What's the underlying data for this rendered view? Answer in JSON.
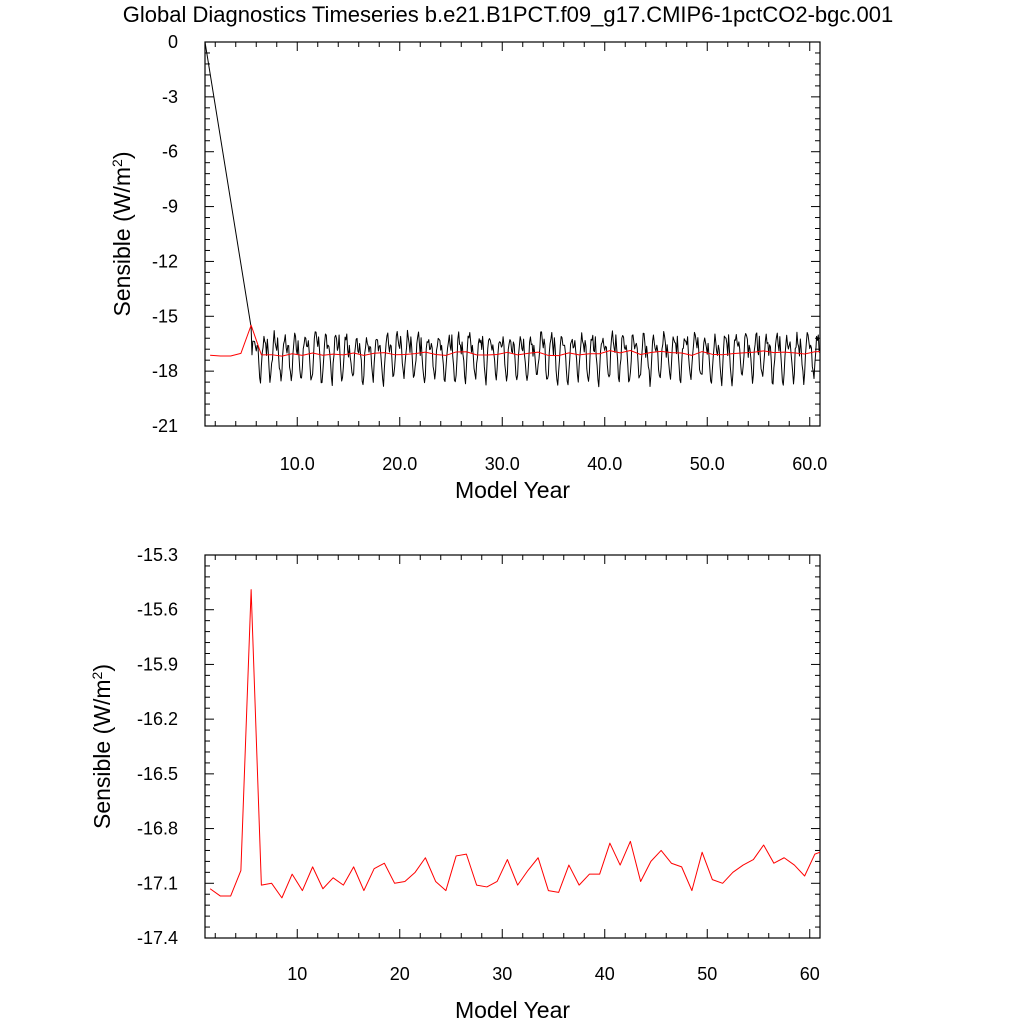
{
  "title": "Global Diagnostics Timeseries b.e21.B1PCT.f09_g17.CMIP6-1pctCO2-bgc.001",
  "colors": {
    "monthly": "#000000",
    "annual": "#ff0000",
    "axes": "#000000",
    "background": "#ffffff"
  },
  "chart_data": [
    {
      "type": "line",
      "xlabel": "Model Year",
      "ylabel": {
        "text": "Sensible (W/m",
        "sup": "2",
        "close": ")"
      },
      "xlim": [
        1,
        61
      ],
      "ylim": [
        -21,
        0
      ],
      "x_ticks": [
        10,
        20,
        30,
        40,
        50,
        60
      ],
      "x_tick_labels": [
        "10.0",
        "20.0",
        "30.0",
        "40.0",
        "50.0",
        "60.0"
      ],
      "y_ticks": [
        0,
        -3,
        -6,
        -9,
        -12,
        -15,
        -18,
        -21
      ],
      "y_tick_labels": [
        "0",
        "-3",
        "-6",
        "-9",
        "-12",
        "-15",
        "-18",
        "-21"
      ],
      "series": [
        {
          "color": "#000000",
          "description": "monthly values, seasonal cycle between about -18.6 and -16.0 after an initial spin-up from 0 to about -15.6 near year 5",
          "monthly_pattern": [
            -16.3,
            -16.9,
            -17.6,
            -18.3,
            -18.5,
            -17.9,
            -17.1,
            -16.4,
            -16.1,
            -16.2,
            -16.6,
            -16.9
          ],
          "spinup_x": [
            1,
            5.5
          ],
          "spinup_y": [
            0,
            -15.6
          ],
          "x_start": 1,
          "x_end": 61
        },
        {
          "color": "#ff0000",
          "description": "annual mean (same values as lower panel)",
          "x": [
            1.5,
            2.5,
            3.5,
            4.5,
            5.5,
            6.5,
            7.5,
            8.5,
            9.5,
            10.5,
            11.5,
            12.5,
            13.5,
            14.5,
            15.5,
            16.5,
            17.5,
            18.5,
            19.5,
            20.5,
            21.5,
            22.5,
            23.5,
            24.5,
            25.5,
            26.5,
            27.5,
            28.5,
            29.5,
            30.5,
            31.5,
            32.5,
            33.5,
            34.5,
            35.5,
            36.5,
            37.5,
            38.5,
            39.5,
            40.5,
            41.5,
            42.5,
            43.5,
            44.5,
            45.5,
            46.5,
            47.5,
            48.5,
            49.5,
            50.5,
            51.5,
            52.5,
            53.5,
            54.5,
            55.5,
            56.5,
            57.5,
            58.5,
            59.5,
            60.5,
            61
          ],
          "y": [
            -17.13,
            -17.17,
            -17.17,
            -17.03,
            -15.49,
            -17.11,
            -17.1,
            -17.18,
            -17.05,
            -17.14,
            -17.01,
            -17.13,
            -17.07,
            -17.11,
            -17.01,
            -17.14,
            -17.02,
            -16.99,
            -17.1,
            -17.09,
            -17.04,
            -16.96,
            -17.09,
            -17.14,
            -16.95,
            -16.94,
            -17.11,
            -17.12,
            -17.09,
            -16.97,
            -17.11,
            -17.03,
            -16.96,
            -17.14,
            -17.15,
            -17.0,
            -17.11,
            -17.05,
            -17.05,
            -16.88,
            -17.0,
            -16.87,
            -17.09,
            -16.98,
            -16.92,
            -16.99,
            -17.01,
            -17.14,
            -16.93,
            -17.08,
            -17.1,
            -17.04,
            -17.0,
            -16.97,
            -16.89,
            -16.99,
            -16.96,
            -17.0,
            -17.06,
            -16.94,
            -16.93
          ]
        }
      ]
    },
    {
      "type": "line",
      "xlabel": "Model Year",
      "ylabel": {
        "text": "Sensible (W/m",
        "sup": "2",
        "close": ")"
      },
      "xlim": [
        1,
        61
      ],
      "ylim": [
        -17.4,
        -15.3
      ],
      "x_ticks": [
        10,
        20,
        30,
        40,
        50,
        60
      ],
      "x_tick_labels": [
        "10",
        "20",
        "30",
        "40",
        "50",
        "60"
      ],
      "y_ticks": [
        -15.3,
        -15.6,
        -15.9,
        -16.2,
        -16.5,
        -16.8,
        -17.1,
        -17.4
      ],
      "y_tick_labels": [
        "-15.3",
        "-15.6",
        "-15.9",
        "-16.2",
        "-16.5",
        "-16.8",
        "-17.1",
        "-17.4"
      ],
      "series": [
        {
          "color": "#ff0000",
          "description": "annual mean",
          "x": [
            1.5,
            2.5,
            3.5,
            4.5,
            5.5,
            6.5,
            7.5,
            8.5,
            9.5,
            10.5,
            11.5,
            12.5,
            13.5,
            14.5,
            15.5,
            16.5,
            17.5,
            18.5,
            19.5,
            20.5,
            21.5,
            22.5,
            23.5,
            24.5,
            25.5,
            26.5,
            27.5,
            28.5,
            29.5,
            30.5,
            31.5,
            32.5,
            33.5,
            34.5,
            35.5,
            36.5,
            37.5,
            38.5,
            39.5,
            40.5,
            41.5,
            42.5,
            43.5,
            44.5,
            45.5,
            46.5,
            47.5,
            48.5,
            49.5,
            50.5,
            51.5,
            52.5,
            53.5,
            54.5,
            55.5,
            56.5,
            57.5,
            58.5,
            59.5,
            60.5,
            61
          ],
          "y": [
            -17.13,
            -17.17,
            -17.17,
            -17.03,
            -15.49,
            -17.11,
            -17.1,
            -17.18,
            -17.05,
            -17.14,
            -17.01,
            -17.13,
            -17.07,
            -17.11,
            -17.01,
            -17.14,
            -17.02,
            -16.99,
            -17.1,
            -17.09,
            -17.04,
            -16.96,
            -17.09,
            -17.14,
            -16.95,
            -16.94,
            -17.11,
            -17.12,
            -17.09,
            -16.97,
            -17.11,
            -17.03,
            -16.96,
            -17.14,
            -17.15,
            -17.0,
            -17.11,
            -17.05,
            -17.05,
            -16.88,
            -17.0,
            -16.87,
            -17.09,
            -16.98,
            -16.92,
            -16.99,
            -17.01,
            -17.14,
            -16.93,
            -17.08,
            -17.1,
            -17.04,
            -17.0,
            -16.97,
            -16.89,
            -16.99,
            -16.96,
            -17.0,
            -17.06,
            -16.94,
            -16.93
          ]
        }
      ]
    }
  ]
}
